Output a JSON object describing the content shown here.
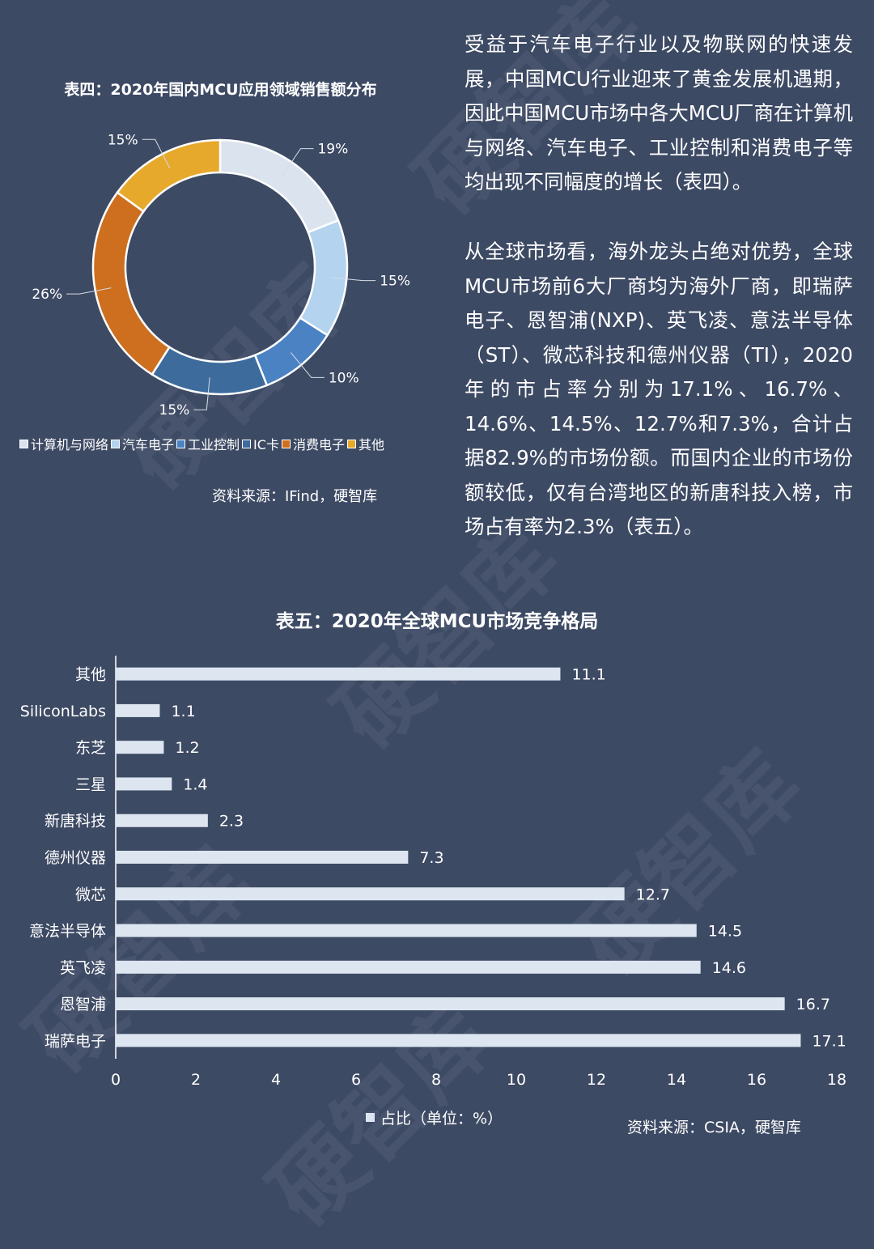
{
  "watermark": "硬智库",
  "paragraphs": {
    "p1": "受益于汽车电子行业以及物联网的快速发展，中国MCU行业迎来了黄金发展机遇期，因此中国MCU市场中各大MCU厂商在计算机与网络、汽车电子、工业控制和消费电子等均出现不同幅度的增长（表四）。",
    "p2": "从全球市场看，海外龙头占绝对优势，全球MCU市场前6大厂商均为海外厂商，即瑞萨电子、恩智浦(NXP)、英飞凌、意法半导体（ST）、微芯科技和德州仪器（TI），2020年的市占率分别为17.1%、16.7%、14.6%、14.5%、12.7%和7.3%，合计占据82.9%的市场份额。而国内企业的市场份额较低，仅有台湾地区的新唐科技入榜，市场占有率为2.3%（表五）。"
  },
  "chart_data": [
    {
      "type": "pie",
      "donut": true,
      "title": "表四：2020年国内MCU应用领域销售额分布",
      "source": "资料来源：IFind，硬智库",
      "legend_position": "bottom",
      "slices": [
        {
          "name": "计算机与网络",
          "value": 19,
          "label": "19%",
          "color": "#dbe3ee"
        },
        {
          "name": "汽车电子",
          "value": 15,
          "label": "15%",
          "color": "#b3d3ef"
        },
        {
          "name": "工业控制",
          "value": 10,
          "label": "10%",
          "color": "#4a82c3"
        },
        {
          "name": "IC卡",
          "value": 15,
          "label": "15%",
          "color": "#3d6b9c"
        },
        {
          "name": "消费电子",
          "value": 26,
          "label": "26%",
          "color": "#cd6f1e"
        },
        {
          "name": "其他",
          "value": 15,
          "label": "15%",
          "color": "#e6a92c"
        }
      ]
    },
    {
      "type": "bar",
      "orientation": "horizontal",
      "title": "表五：2020年全球MCU市场竞争格局",
      "source": "资料来源：CSIA，硬智库",
      "series": [
        {
          "name": "占比（单位：%）",
          "color": "#dde6f0"
        }
      ],
      "categories": [
        "其他",
        "SiliconLabs",
        "东芝",
        "三星",
        "新唐科技",
        "德州仪器",
        "微芯",
        "意法半导体",
        "英飞凌",
        "恩智浦",
        "瑞萨电子"
      ],
      "values": [
        11.1,
        1.1,
        1.2,
        1.4,
        2.3,
        7.3,
        12.7,
        14.5,
        14.6,
        16.7,
        17.1
      ],
      "xlim": [
        0,
        18
      ],
      "xticks": [
        "0",
        "2",
        "4",
        "6",
        "8",
        "10",
        "12",
        "14",
        "16",
        "18"
      ],
      "grid": false
    }
  ]
}
